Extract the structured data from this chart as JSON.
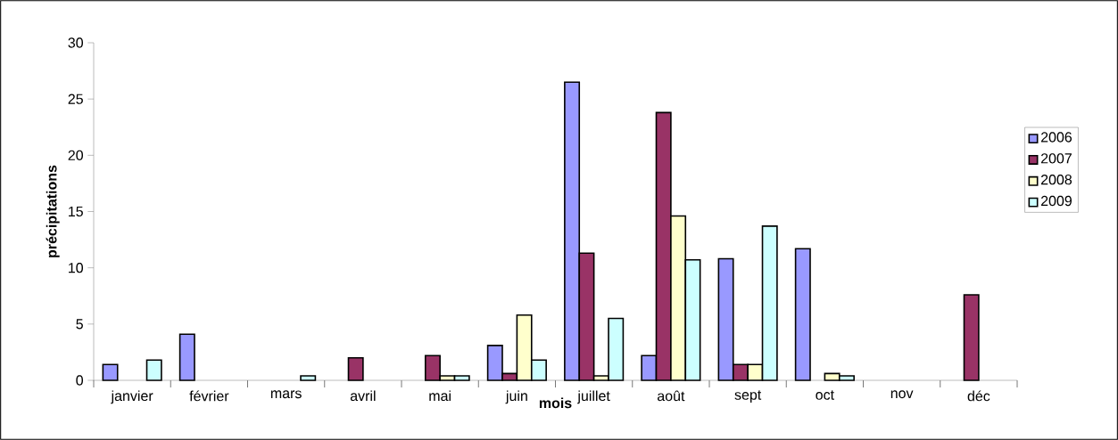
{
  "chart_data": {
    "type": "bar",
    "xlabel": "mois",
    "ylabel": "précipitations",
    "categories": [
      "janvier",
      "février",
      "mars",
      "avril",
      "mai",
      "juin",
      "juillet",
      "août",
      "sept",
      "oct",
      "nov",
      "déc"
    ],
    "series": [
      {
        "name": "2006",
        "color": "#9999ff",
        "values": [
          1.4,
          4.1,
          null,
          null,
          null,
          3.1,
          26.5,
          2.2,
          10.8,
          11.7,
          null,
          null
        ]
      },
      {
        "name": "2007",
        "color": "#993366",
        "values": [
          null,
          null,
          null,
          2.0,
          2.2,
          0.6,
          11.3,
          23.8,
          1.4,
          null,
          null,
          7.6
        ]
      },
      {
        "name": "2008",
        "color": "#ffffcc",
        "values": [
          null,
          null,
          null,
          null,
          0.4,
          5.8,
          0.4,
          14.6,
          1.4,
          0.6,
          null,
          null
        ]
      },
      {
        "name": "2009",
        "color": "#ccffff",
        "values": [
          1.8,
          null,
          0.4,
          null,
          0.4,
          1.8,
          5.5,
          10.7,
          13.7,
          0.4,
          null,
          null
        ]
      }
    ],
    "ylim": [
      0,
      30
    ],
    "yticks": [
      0,
      5,
      10,
      15,
      20,
      25,
      30
    ],
    "legend": "right",
    "grid": false
  }
}
